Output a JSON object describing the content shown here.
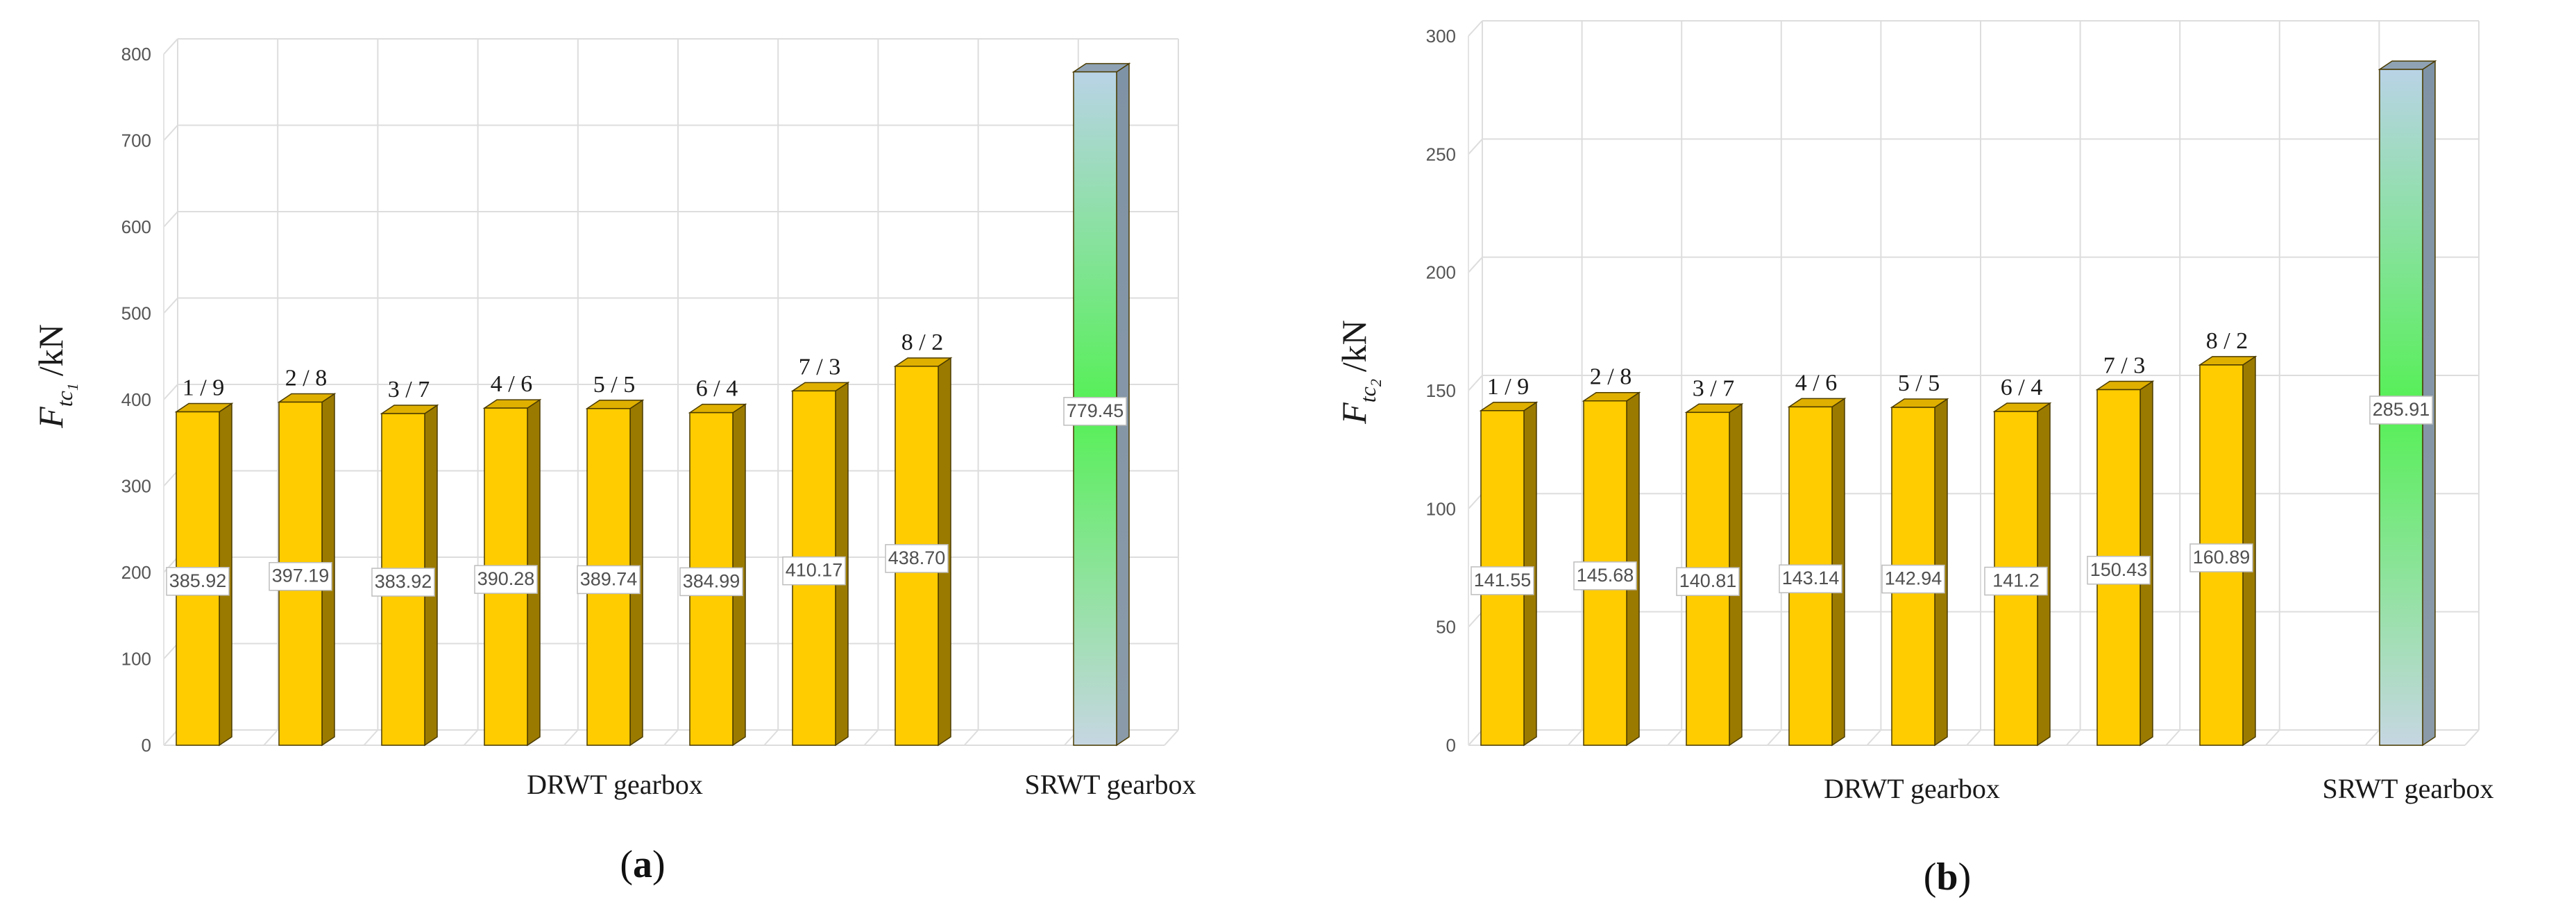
{
  "chart_data": [
    {
      "type": "bar",
      "panel_label": "a",
      "ylabel_main": "F",
      "ylabel_sub_letter": "t",
      "ylabel_sub_prime": "c",
      "ylabel_sub_index": "1",
      "ylabel_unit": "/kN",
      "ylim": [
        0,
        800
      ],
      "yticks": [
        0,
        100,
        200,
        300,
        400,
        500,
        600,
        700,
        800
      ],
      "grid": true,
      "groups": [
        {
          "label": "DRWT gearbox",
          "categories": [
            "1 / 9",
            "2 / 8",
            "3 / 7",
            "4 / 6",
            "5 / 5",
            "6 / 4",
            "7 / 3",
            "8 / 2"
          ],
          "values": [
            385.92,
            397.19,
            383.92,
            390.28,
            389.74,
            384.99,
            410.17,
            438.7
          ],
          "value_labels": [
            "385.92",
            "397.19",
            "383.92",
            "390.28",
            "389.74",
            "384.99",
            "410.17",
            "438.70"
          ],
          "color": "#FFCC00"
        },
        {
          "label": "SRWT gearbox",
          "categories": [
            ""
          ],
          "values": [
            779.45
          ],
          "value_labels": [
            "779.45"
          ],
          "color": "gradient-green"
        }
      ]
    },
    {
      "type": "bar",
      "panel_label": "b",
      "ylabel_main": "F",
      "ylabel_sub_letter": "t",
      "ylabel_sub_prime": "c",
      "ylabel_sub_index": "2",
      "ylabel_unit": "/kN",
      "ylim": [
        0,
        300
      ],
      "yticks": [
        0,
        50,
        100,
        150,
        200,
        250,
        300
      ],
      "grid": true,
      "groups": [
        {
          "label": "DRWT gearbox",
          "categories": [
            "1 / 9",
            "2 / 8",
            "3 / 7",
            "4 / 6",
            "5 / 5",
            "6 / 4",
            "7 / 3",
            "8 / 2"
          ],
          "values": [
            141.55,
            145.68,
            140.81,
            143.14,
            142.94,
            141.2,
            150.43,
            160.89
          ],
          "value_labels": [
            "141.55",
            "145.68",
            "140.81",
            "143.14",
            "142.94",
            "141.2",
            "150.43",
            "160.89"
          ],
          "color": "#FFCC00"
        },
        {
          "label": "SRWT gearbox",
          "categories": [
            ""
          ],
          "values": [
            285.91
          ],
          "value_labels": [
            "285.91"
          ],
          "color": "gradient-green"
        }
      ]
    }
  ]
}
